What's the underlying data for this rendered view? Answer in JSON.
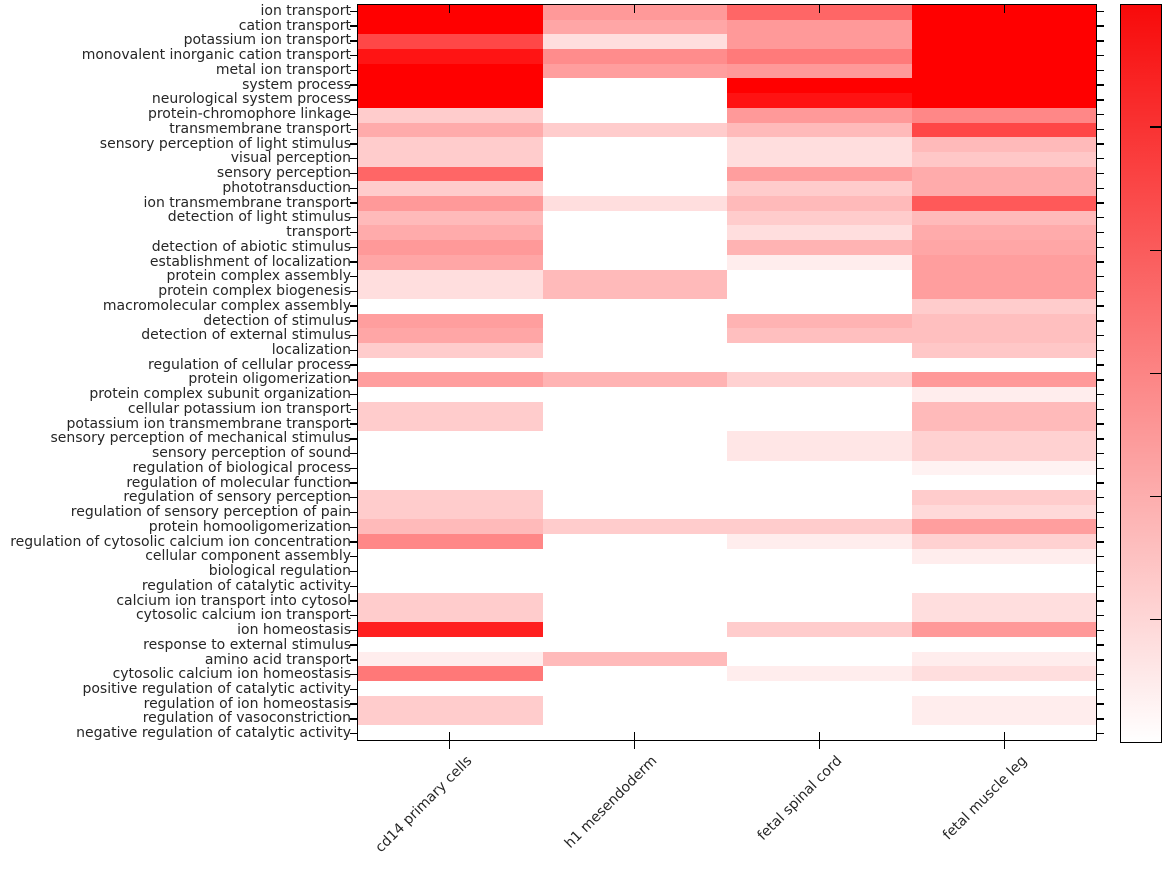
{
  "chart_data": {
    "type": "heatmap",
    "title": "",
    "xlabel": "",
    "ylabel": "",
    "legend_position": "right",
    "grid": false,
    "x_categories": [
      "cd14 primary cells",
      "h1 mesendoderm",
      "fetal spinal cord",
      "fetal muscle leg"
    ],
    "y_categories": [
      "ion transport",
      "cation transport",
      "potassium ion transport",
      "monovalent inorganic cation transport",
      "metal ion transport",
      "system process",
      "neurological system process",
      "protein-chromophore linkage",
      "transmembrane transport",
      "sensory perception of light stimulus",
      "visual perception",
      "sensory perception",
      "phototransduction",
      "ion transmembrane transport",
      "detection of light stimulus",
      "transport",
      "detection of abiotic stimulus",
      "establishment of localization",
      "protein complex assembly",
      "protein complex biogenesis",
      "macromolecular complex assembly",
      "detection of stimulus",
      "detection of external stimulus",
      "localization",
      "regulation of cellular process",
      "protein oligomerization",
      "protein complex subunit organization",
      "cellular potassium ion transport",
      "potassium ion transmembrane transport",
      "sensory perception of mechanical stimulus",
      "sensory perception of sound",
      "regulation of biological process",
      "regulation of molecular function",
      "regulation of sensory perception",
      "regulation of sensory perception of pain",
      "protein homooligomerization",
      "regulation of cytosolic calcium ion concentration",
      "cellular component assembly",
      "biological regulation",
      "regulation of catalytic activity",
      "calcium ion transport into cytosol",
      "cytosolic calcium ion transport",
      "ion homeostasis",
      "response to external stimulus",
      "amino acid transport",
      "cytosolic calcium ion homeostasis",
      "positive regulation of catalytic activity",
      "regulation of ion homeostasis",
      "regulation of vasoconstriction",
      "negative regulation of catalytic activity"
    ],
    "values_note": "relative color intensity per cell, 0 = white, 1 = saturated red (colorbar has unlabeled ticks)",
    "values": [
      [
        1.0,
        0.4,
        0.6,
        1.0
      ],
      [
        1.0,
        0.35,
        0.4,
        1.0
      ],
      [
        0.72,
        0.13,
        0.4,
        1.0
      ],
      [
        0.92,
        0.45,
        0.52,
        1.0
      ],
      [
        1.0,
        0.38,
        0.4,
        1.0
      ],
      [
        1.0,
        0.0,
        1.0,
        1.0
      ],
      [
        1.0,
        0.0,
        0.93,
        1.0
      ],
      [
        0.2,
        0.0,
        0.4,
        0.47
      ],
      [
        0.33,
        0.2,
        0.27,
        0.72
      ],
      [
        0.2,
        0.0,
        0.13,
        0.27
      ],
      [
        0.2,
        0.0,
        0.13,
        0.22
      ],
      [
        0.6,
        0.0,
        0.38,
        0.33
      ],
      [
        0.2,
        0.0,
        0.2,
        0.33
      ],
      [
        0.4,
        0.13,
        0.27,
        0.65
      ],
      [
        0.27,
        0.0,
        0.2,
        0.27
      ],
      [
        0.33,
        0.0,
        0.13,
        0.33
      ],
      [
        0.4,
        0.0,
        0.3,
        0.35
      ],
      [
        0.35,
        0.0,
        0.07,
        0.38
      ],
      [
        0.13,
        0.27,
        0.0,
        0.38
      ],
      [
        0.13,
        0.27,
        0.0,
        0.38
      ],
      [
        0.0,
        0.0,
        0.0,
        0.2
      ],
      [
        0.38,
        0.0,
        0.3,
        0.25
      ],
      [
        0.35,
        0.0,
        0.25,
        0.25
      ],
      [
        0.2,
        0.0,
        0.0,
        0.22
      ],
      [
        0.0,
        0.0,
        0.0,
        0.0
      ],
      [
        0.38,
        0.3,
        0.18,
        0.4
      ],
      [
        0.0,
        0.0,
        0.0,
        0.07
      ],
      [
        0.2,
        0.0,
        0.0,
        0.27
      ],
      [
        0.2,
        0.0,
        0.0,
        0.27
      ],
      [
        0.0,
        0.0,
        0.1,
        0.18
      ],
      [
        0.0,
        0.0,
        0.1,
        0.18
      ],
      [
        0.0,
        0.0,
        0.0,
        0.05
      ],
      [
        0.0,
        0.0,
        0.0,
        0.0
      ],
      [
        0.2,
        0.0,
        0.0,
        0.2
      ],
      [
        0.2,
        0.0,
        0.0,
        0.15
      ],
      [
        0.27,
        0.2,
        0.2,
        0.38
      ],
      [
        0.47,
        0.0,
        0.07,
        0.18
      ],
      [
        0.0,
        0.0,
        0.0,
        0.07
      ],
      [
        0.0,
        0.0,
        0.0,
        0.0
      ],
      [
        0.0,
        0.0,
        0.0,
        0.0
      ],
      [
        0.2,
        0.0,
        0.0,
        0.13
      ],
      [
        0.2,
        0.0,
        0.0,
        0.13
      ],
      [
        0.88,
        0.0,
        0.2,
        0.4
      ],
      [
        0.0,
        0.0,
        0.0,
        0.0
      ],
      [
        0.07,
        0.27,
        0.0,
        0.07
      ],
      [
        0.53,
        0.0,
        0.07,
        0.13
      ],
      [
        0.0,
        0.0,
        0.0,
        0.0
      ],
      [
        0.2,
        0.0,
        0.0,
        0.07
      ],
      [
        0.2,
        0.0,
        0.0,
        0.07
      ],
      [
        0.0,
        0.0,
        0.0,
        0.0
      ]
    ],
    "colormap": {
      "low": "#ffffff",
      "high": "#f80a0a"
    },
    "colorbar": {
      "position": "right",
      "orientation": "vertical",
      "tick_fractions_from_top": [
        0.1667,
        0.3333,
        0.5,
        0.6667,
        0.8333
      ],
      "tick_labels": []
    }
  }
}
